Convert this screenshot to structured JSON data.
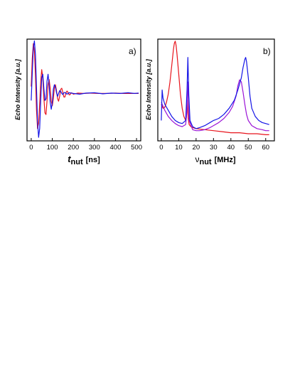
{
  "chart_data": [
    {
      "type": "line",
      "panel_label": "a)",
      "ylabel": "Echo Intensity [a.u.]",
      "xlabel_main": "t",
      "xlabel_sub": "nut",
      "xlabel_unit": "[ns]",
      "xlim": [
        -20,
        520
      ],
      "ylim": [
        -1.35,
        1.55
      ],
      "x_ticks": [
        0,
        100,
        200,
        300,
        400,
        500
      ],
      "x_tick_labels": [
        "0",
        "100",
        "200",
        "300",
        "400",
        "500"
      ],
      "grid": false,
      "series": [
        {
          "color": "#e8141c",
          "x": [
            0,
            5,
            10,
            15,
            20,
            25,
            30,
            35,
            40,
            45,
            50,
            55,
            60,
            65,
            70,
            75,
            80,
            85,
            90,
            95,
            100,
            105,
            110,
            115,
            120,
            125,
            130,
            135,
            140,
            145,
            150,
            155,
            160,
            165,
            170,
            175,
            180,
            185,
            190,
            195,
            200,
            220,
            250,
            280,
            320,
            360,
            400,
            440,
            480,
            510
          ],
          "y": [
            0.2,
            1.0,
            1.42,
            1.2,
            0.5,
            -0.45,
            -1.0,
            -0.85,
            -0.3,
            0.35,
            0.68,
            0.45,
            -0.12,
            -0.55,
            -0.6,
            -0.22,
            0.25,
            0.4,
            0.15,
            -0.22,
            -0.35,
            -0.15,
            0.15,
            0.25,
            0.08,
            -0.15,
            -0.22,
            -0.08,
            0.12,
            0.15,
            0.03,
            -0.1,
            -0.1,
            0.02,
            0.07,
            0.03,
            -0.04,
            -0.03,
            0.02,
            0.01,
            -0.02,
            0.01,
            0.0,
            0.01,
            0.0,
            0.0,
            0.01,
            0.0,
            0.0,
            0.0
          ]
        },
        {
          "color": "#1414e6",
          "x": [
            0,
            5,
            10,
            15,
            20,
            25,
            30,
            35,
            40,
            45,
            50,
            55,
            60,
            65,
            70,
            75,
            80,
            85,
            90,
            95,
            100,
            105,
            110,
            115,
            120,
            125,
            130,
            135,
            140,
            145,
            150,
            155,
            160,
            170,
            180,
            200,
            230,
            260,
            300,
            340,
            380,
            420,
            460,
            490,
            510
          ],
          "y": [
            -0.2,
            0.6,
            1.3,
            1.5,
            1.1,
            0.2,
            -0.8,
            -1.25,
            -1.0,
            -0.2,
            0.45,
            0.55,
            0.15,
            -0.2,
            -0.15,
            0.35,
            0.55,
            0.25,
            -0.25,
            -0.45,
            -0.25,
            0.12,
            0.25,
            0.18,
            0.02,
            -0.08,
            0.0,
            0.08,
            0.06,
            0.0,
            -0.03,
            0.02,
            0.03,
            -0.02,
            0.02,
            0.0,
            -0.02,
            0.01,
            0.02,
            -0.01,
            0.01,
            0.0,
            0.02,
            0.0,
            0.01
          ]
        }
      ]
    },
    {
      "type": "line",
      "panel_label": "b)",
      "ylabel": "Echo Intensity [a.u.]",
      "xlabel_main": "ν",
      "xlabel_sub": "nut",
      "xlabel_unit": "[MHz]",
      "xlim": [
        -2,
        65
      ],
      "ylim": [
        0,
        1.0
      ],
      "x_ticks": [
        0,
        10,
        20,
        30,
        40,
        50,
        60
      ],
      "x_tick_labels": [
        "0",
        "10",
        "20",
        "30",
        "40",
        "50",
        "60"
      ],
      "grid": false,
      "series": [
        {
          "color": "#e8141c",
          "x": [
            0,
            1,
            2,
            3,
            4,
            5,
            6,
            7,
            7.5,
            8,
            8.5,
            9,
            10,
            11,
            12,
            13,
            14,
            14.5,
            15,
            15.5,
            16,
            17,
            18,
            20,
            25,
            30,
            35,
            40,
            45,
            50,
            55,
            60,
            62
          ],
          "y": [
            0.36,
            0.32,
            0.33,
            0.38,
            0.46,
            0.58,
            0.74,
            0.9,
            0.96,
            0.98,
            0.94,
            0.86,
            0.66,
            0.46,
            0.32,
            0.24,
            0.2,
            0.24,
            0.4,
            0.22,
            0.16,
            0.14,
            0.13,
            0.12,
            0.11,
            0.1,
            0.09,
            0.08,
            0.08,
            0.07,
            0.07,
            0.06,
            0.06
          ]
        },
        {
          "color": "#9b14d6",
          "x": [
            0,
            2,
            4,
            6,
            8,
            10,
            12,
            14,
            14.8,
            15.4,
            16,
            18,
            20,
            22,
            25,
            28,
            30,
            33,
            36,
            39,
            41,
            43,
            44,
            45,
            46,
            47,
            48,
            49,
            50,
            52,
            55,
            58,
            60,
            62
          ],
          "y": [
            0.38,
            0.3,
            0.24,
            0.2,
            0.17,
            0.15,
            0.14,
            0.16,
            0.3,
            0.58,
            0.2,
            0.11,
            0.1,
            0.1,
            0.11,
            0.13,
            0.15,
            0.18,
            0.22,
            0.28,
            0.34,
            0.44,
            0.54,
            0.6,
            0.58,
            0.48,
            0.36,
            0.26,
            0.2,
            0.15,
            0.12,
            0.11,
            0.1,
            0.1
          ]
        },
        {
          "color": "#1414e6",
          "x": [
            0,
            0.5,
            1,
            2,
            4,
            6,
            8,
            10,
            12,
            14,
            14.8,
            15.3,
            15.8,
            16.5,
            18,
            20,
            22,
            25,
            28,
            30,
            33,
            36,
            39,
            42,
            44,
            46,
            47,
            48,
            48.5,
            49,
            50,
            51,
            52,
            54,
            56,
            58,
            60,
            62
          ],
          "y": [
            0.2,
            0.5,
            0.42,
            0.36,
            0.3,
            0.24,
            0.2,
            0.18,
            0.17,
            0.2,
            0.5,
            0.82,
            0.45,
            0.2,
            0.14,
            0.12,
            0.13,
            0.15,
            0.18,
            0.2,
            0.22,
            0.26,
            0.32,
            0.4,
            0.5,
            0.62,
            0.72,
            0.8,
            0.82,
            0.78,
            0.62,
            0.44,
            0.32,
            0.24,
            0.2,
            0.18,
            0.17,
            0.16
          ]
        }
      ]
    }
  ]
}
